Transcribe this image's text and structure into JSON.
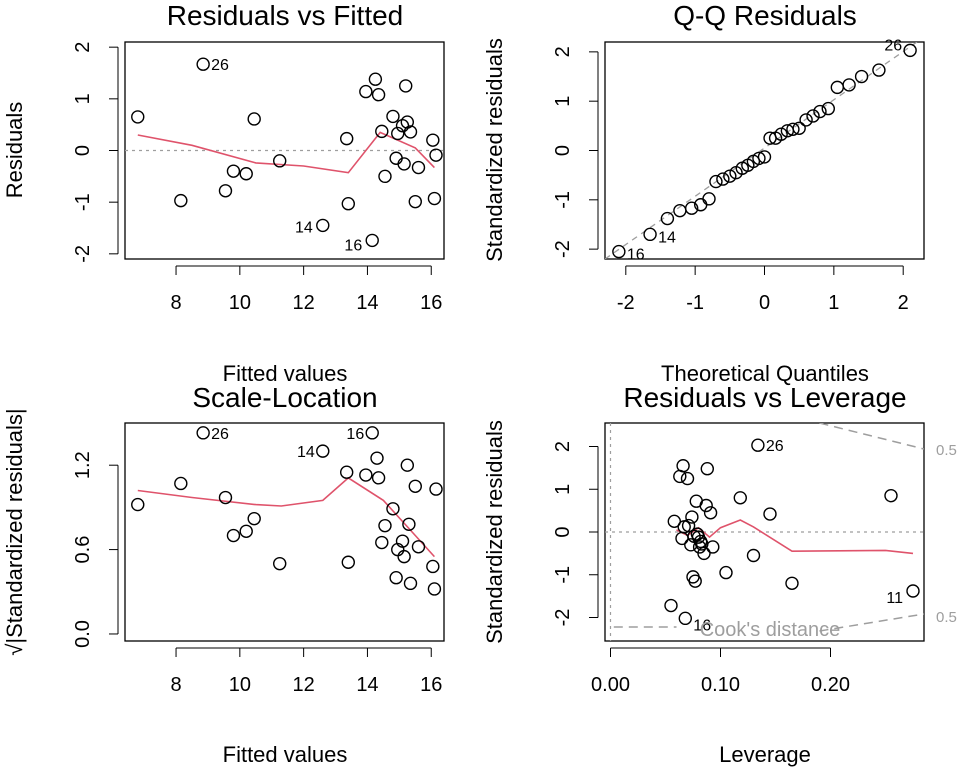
{
  "chart_data": [
    {
      "type": "scatter",
      "title": "Residuals vs Fitted",
      "xlabel": "Fitted values",
      "ylabel": "Residuals",
      "xlim": [
        6.4,
        16.4
      ],
      "ylim": [
        -2.1,
        2.1
      ],
      "xticks": [
        "8",
        "10",
        "12",
        "14",
        "16"
      ],
      "yticks": [
        "-2",
        "-1",
        "0",
        "1",
        "2"
      ],
      "reference_line": 0,
      "points": [
        [
          6.8,
          0.65
        ],
        [
          8.15,
          -0.97
        ],
        [
          8.85,
          1.67
        ],
        [
          9.55,
          -0.78
        ],
        [
          9.8,
          -0.4
        ],
        [
          10.2,
          -0.45
        ],
        [
          10.45,
          0.61
        ],
        [
          11.25,
          -0.2
        ],
        [
          12.6,
          -1.45
        ],
        [
          13.35,
          0.23
        ],
        [
          13.4,
          -1.03
        ],
        [
          13.95,
          1.14
        ],
        [
          14.15,
          -1.74
        ],
        [
          14.25,
          1.38
        ],
        [
          14.35,
          1.08
        ],
        [
          14.45,
          0.37
        ],
        [
          14.55,
          -0.5
        ],
        [
          14.8,
          0.66
        ],
        [
          14.9,
          -0.15
        ],
        [
          14.95,
          0.33
        ],
        [
          15.1,
          0.48
        ],
        [
          15.15,
          -0.26
        ],
        [
          15.2,
          1.25
        ],
        [
          15.25,
          0.55
        ],
        [
          15.35,
          0.36
        ],
        [
          15.5,
          -0.99
        ],
        [
          15.6,
          -0.33
        ],
        [
          16.05,
          0.2
        ],
        [
          16.1,
          -0.93
        ],
        [
          16.15,
          -0.09
        ]
      ],
      "smooth": [
        [
          6.8,
          0.3
        ],
        [
          8.5,
          0.1
        ],
        [
          10.5,
          -0.24
        ],
        [
          12,
          -0.3
        ],
        [
          13.4,
          -0.43
        ],
        [
          14.4,
          0.35
        ],
        [
          15.5,
          0.05
        ],
        [
          16.1,
          -0.33
        ]
      ],
      "point_labels": [
        {
          "text": "26",
          "x": 8.85,
          "y": 1.67
        },
        {
          "text": "14",
          "x": 12.6,
          "y": -1.45
        },
        {
          "text": "16",
          "x": 14.15,
          "y": -1.74
        }
      ]
    },
    {
      "type": "scatter",
      "title": "Q-Q Residuals",
      "xlabel": "Theoretical Quantiles",
      "ylabel": "Standardized residuals",
      "xlim": [
        -2.3,
        2.3
      ],
      "ylim": [
        -2.2,
        2.2
      ],
      "xticks": [
        "-2",
        "-1",
        "0",
        "1",
        "2"
      ],
      "yticks": [
        "-2",
        "-1",
        "0",
        "1",
        "2"
      ],
      "reference_line": [
        [
          -2.3,
          -2.2
        ],
        [
          2.3,
          2.3
        ]
      ],
      "points": [
        [
          -2.1,
          -2.05
        ],
        [
          -1.65,
          -1.7
        ],
        [
          -1.4,
          -1.38
        ],
        [
          -1.22,
          -1.22
        ],
        [
          -1.05,
          -1.17
        ],
        [
          -0.92,
          -1.1
        ],
        [
          -0.8,
          -0.98
        ],
        [
          -0.7,
          -0.63
        ],
        [
          -0.6,
          -0.58
        ],
        [
          -0.5,
          -0.52
        ],
        [
          -0.41,
          -0.45
        ],
        [
          -0.32,
          -0.36
        ],
        [
          -0.24,
          -0.3
        ],
        [
          -0.16,
          -0.22
        ],
        [
          -0.08,
          -0.16
        ],
        [
          0.0,
          -0.13
        ],
        [
          0.08,
          0.25
        ],
        [
          0.16,
          0.25
        ],
        [
          0.24,
          0.33
        ],
        [
          0.33,
          0.4
        ],
        [
          0.41,
          0.43
        ],
        [
          0.5,
          0.45
        ],
        [
          0.6,
          0.62
        ],
        [
          0.7,
          0.7
        ],
        [
          0.8,
          0.79
        ],
        [
          0.92,
          0.85
        ],
        [
          1.05,
          1.28
        ],
        [
          1.22,
          1.33
        ],
        [
          1.4,
          1.5
        ],
        [
          1.65,
          1.63
        ],
        [
          2.1,
          2.03
        ]
      ],
      "point_labels": [
        {
          "text": "26",
          "x": 2.1,
          "y": 2.03
        },
        {
          "text": "14",
          "x": -1.65,
          "y": -1.7
        },
        {
          "text": "16",
          "x": -2.1,
          "y": -2.05
        }
      ]
    },
    {
      "type": "scatter",
      "title": "Scale-Location",
      "xlabel": "Fitted values",
      "ylabel": "√|Standardized residuals|",
      "xlim": [
        6.4,
        16.4
      ],
      "ylim": [
        -0.05,
        1.5
      ],
      "xticks": [
        "8",
        "10",
        "12",
        "14",
        "16"
      ],
      "yticks": [
        "0.0",
        "0.6",
        "1.2"
      ],
      "points": [
        [
          6.8,
          0.92
        ],
        [
          8.15,
          1.07
        ],
        [
          8.85,
          1.43
        ],
        [
          9.55,
          0.97
        ],
        [
          9.8,
          0.7
        ],
        [
          10.2,
          0.73
        ],
        [
          10.45,
          0.82
        ],
        [
          11.25,
          0.5
        ],
        [
          12.6,
          1.3
        ],
        [
          13.35,
          1.15
        ],
        [
          13.4,
          0.51
        ],
        [
          13.95,
          1.13
        ],
        [
          14.15,
          1.43
        ],
        [
          14.3,
          1.25
        ],
        [
          14.35,
          1.11
        ],
        [
          14.45,
          0.65
        ],
        [
          14.55,
          0.77
        ],
        [
          14.8,
          0.89
        ],
        [
          14.9,
          0.4
        ],
        [
          14.95,
          0.6
        ],
        [
          15.1,
          0.66
        ],
        [
          15.15,
          0.55
        ],
        [
          15.25,
          1.2
        ],
        [
          15.3,
          0.78
        ],
        [
          15.35,
          0.36
        ],
        [
          15.5,
          1.05
        ],
        [
          15.6,
          0.62
        ],
        [
          16.05,
          0.48
        ],
        [
          16.1,
          0.32
        ],
        [
          16.15,
          1.03
        ]
      ],
      "smooth": [
        [
          6.8,
          1.02
        ],
        [
          8.5,
          0.97
        ],
        [
          10.5,
          0.92
        ],
        [
          11.3,
          0.91
        ],
        [
          12.6,
          0.95
        ],
        [
          13.4,
          1.11
        ],
        [
          14.5,
          0.95
        ],
        [
          15.5,
          0.7
        ],
        [
          16.1,
          0.55
        ]
      ],
      "point_labels": [
        {
          "text": "26",
          "x": 8.85,
          "y": 1.43
        },
        {
          "text": "14",
          "x": 12.6,
          "y": 1.3
        },
        {
          "text": "16",
          "x": 14.15,
          "y": 1.43
        }
      ]
    },
    {
      "type": "scatter",
      "title": "Residuals vs Leverage",
      "xlabel": "Leverage",
      "ylabel": "Standardized residuals",
      "xlim": [
        -0.005,
        0.285
      ],
      "ylim": [
        -2.55,
        2.55
      ],
      "xticks": [
        "0.00",
        "0.10",
        "0.20"
      ],
      "yticks": [
        "-2",
        "-1",
        "0",
        "1",
        "2"
      ],
      "reference_line": 0,
      "points": [
        [
          0.055,
          -1.72
        ],
        [
          0.058,
          0.25
        ],
        [
          0.063,
          1.3
        ],
        [
          0.065,
          -0.15
        ],
        [
          0.066,
          1.55
        ],
        [
          0.067,
          0.12
        ],
        [
          0.068,
          -2.02
        ],
        [
          0.07,
          1.25
        ],
        [
          0.071,
          0.15
        ],
        [
          0.073,
          -0.3
        ],
        [
          0.074,
          0.35
        ],
        [
          0.075,
          -1.05
        ],
        [
          0.076,
          -0.1
        ],
        [
          0.077,
          -1.15
        ],
        [
          0.078,
          0.72
        ],
        [
          0.079,
          -0.05
        ],
        [
          0.08,
          -0.12
        ],
        [
          0.081,
          -0.35
        ],
        [
          0.082,
          -0.22
        ],
        [
          0.083,
          -0.28
        ],
        [
          0.085,
          -0.5
        ],
        [
          0.087,
          0.62
        ],
        [
          0.088,
          1.48
        ],
        [
          0.091,
          0.45
        ],
        [
          0.093,
          -0.35
        ],
        [
          0.105,
          -0.95
        ],
        [
          0.118,
          0.8
        ],
        [
          0.13,
          -0.55
        ],
        [
          0.134,
          2.03
        ],
        [
          0.145,
          0.42
        ],
        [
          0.165,
          -1.2
        ],
        [
          0.255,
          0.85
        ],
        [
          0.275,
          -1.38
        ]
      ],
      "smooth": [
        [
          0.06,
          0.05
        ],
        [
          0.07,
          -0.08
        ],
        [
          0.08,
          0.1
        ],
        [
          0.09,
          -0.12
        ],
        [
          0.1,
          0.1
        ],
        [
          0.118,
          0.28
        ],
        [
          0.13,
          0.12
        ],
        [
          0.165,
          -0.45
        ],
        [
          0.25,
          -0.43
        ],
        [
          0.275,
          -0.5
        ]
      ],
      "point_labels": [
        {
          "text": "26",
          "x": 0.134,
          "y": 2.03
        },
        {
          "text": "11",
          "x": 0.275,
          "y": -1.38
        },
        {
          "text": "16",
          "x": 0.068,
          "y": -2.02
        }
      ],
      "cooks_distance_label": "Cook's distance",
      "cooks_level_labels": [
        "0.5",
        "0.5"
      ]
    }
  ]
}
